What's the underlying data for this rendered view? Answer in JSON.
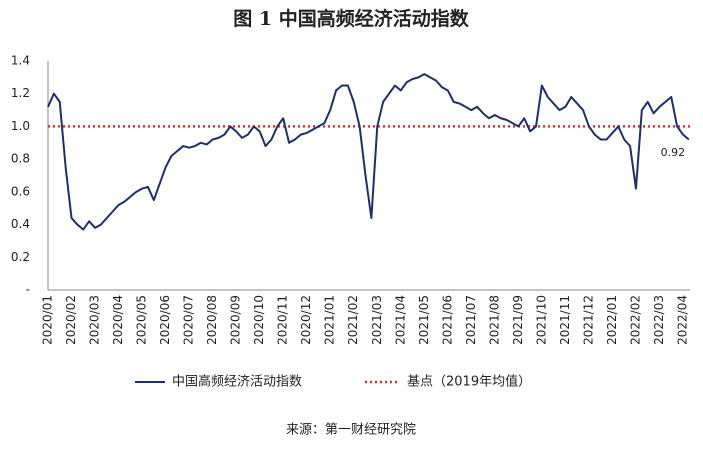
{
  "chart_data": {
    "type": "line",
    "title": "图 1  中国高频经济活动指数",
    "source": "来源：第一财经研究院",
    "annotation": "0.92",
    "categories": [
      "2020/01",
      null,
      null,
      null,
      "2020/02",
      null,
      null,
      null,
      "2020/03",
      null,
      null,
      null,
      "2020/04",
      null,
      null,
      null,
      "2020/05",
      null,
      null,
      null,
      "2020/06",
      null,
      null,
      null,
      "2020/07",
      null,
      null,
      null,
      "2020/08",
      null,
      null,
      null,
      "2020/09",
      null,
      null,
      null,
      "2020/10",
      null,
      null,
      null,
      "2020/11",
      null,
      null,
      null,
      "2020/12",
      null,
      null,
      null,
      "2021/01",
      null,
      null,
      null,
      "2021/02",
      null,
      null,
      null,
      "2021/03",
      null,
      null,
      null,
      "2021/04",
      null,
      null,
      null,
      "2021/05",
      null,
      null,
      null,
      "2021/06",
      null,
      null,
      null,
      "2021/07",
      null,
      null,
      null,
      "2021/08",
      null,
      null,
      null,
      "2021/09",
      null,
      null,
      null,
      "2021/10",
      null,
      null,
      null,
      "2021/11",
      null,
      null,
      null,
      "2021/12",
      null,
      null,
      null,
      "2022/01",
      null,
      null,
      null,
      "2022/02",
      null,
      null,
      null,
      "2022/03",
      null,
      null,
      null,
      "2022/04",
      null
    ],
    "series": [
      {
        "name": "中国高频经济活动指数",
        "color": "#1f2f6e",
        "values": [
          1.12,
          1.2,
          1.15,
          0.75,
          0.44,
          0.4,
          0.37,
          0.42,
          0.38,
          0.4,
          0.44,
          0.48,
          0.52,
          0.54,
          0.57,
          0.6,
          0.62,
          0.63,
          0.55,
          0.65,
          0.75,
          0.82,
          0.85,
          0.88,
          0.87,
          0.88,
          0.9,
          0.89,
          0.92,
          0.93,
          0.95,
          1.0,
          0.97,
          0.93,
          0.95,
          1.0,
          0.97,
          0.88,
          0.92,
          1.0,
          1.05,
          0.9,
          0.92,
          0.95,
          0.96,
          0.98,
          1.0,
          1.02,
          1.1,
          1.22,
          1.25,
          1.25,
          1.15,
          1.0,
          0.7,
          0.44,
          1.0,
          1.15,
          1.2,
          1.25,
          1.22,
          1.27,
          1.29,
          1.3,
          1.32,
          1.3,
          1.28,
          1.24,
          1.22,
          1.15,
          1.14,
          1.12,
          1.1,
          1.12,
          1.08,
          1.05,
          1.07,
          1.05,
          1.04,
          1.02,
          1.0,
          1.05,
          0.97,
          1.0,
          1.25,
          1.18,
          1.14,
          1.1,
          1.12,
          1.18,
          1.14,
          1.1,
          1.0,
          0.95,
          0.92,
          0.92,
          0.96,
          1.0,
          0.92,
          0.88,
          0.62,
          1.1,
          1.15,
          1.08,
          1.12,
          1.15,
          1.18,
          1.0,
          0.95,
          0.92
        ]
      }
    ],
    "reference_line": {
      "name": "基点（2019年均值）",
      "value": 1,
      "color": "#d9302b"
    },
    "ylim": [
      0,
      1.4
    ],
    "yticks": [
      {
        "value": 0,
        "label": "-"
      },
      0.2,
      0.4,
      0.6,
      0.8,
      {
        "value": 1,
        "label": "1.0"
      },
      1.2,
      1.4
    ]
  }
}
